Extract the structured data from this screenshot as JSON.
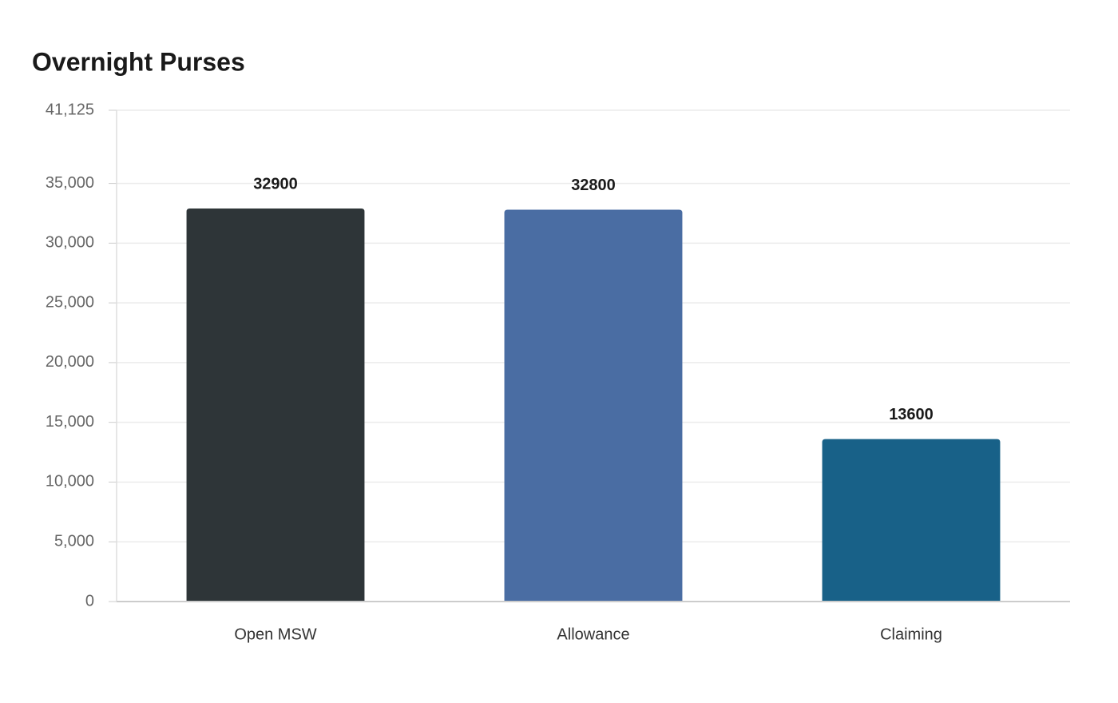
{
  "chart_data": {
    "type": "bar",
    "title": "Overnight Purses",
    "categories": [
      "Open MSW",
      "Allowance",
      "Claiming"
    ],
    "values": [
      32900,
      32800,
      13600
    ],
    "colors": [
      "#2e3538",
      "#4a6da3",
      "#186188"
    ],
    "ylim": [
      0,
      41125
    ],
    "yticks": [
      0,
      {
        "value": 5000,
        "label": "5,000"
      },
      {
        "value": 10000,
        "label": "10,000"
      },
      {
        "value": 15000,
        "label": "15,000"
      },
      {
        "value": 20000,
        "label": "20,000"
      },
      {
        "value": 25000,
        "label": "25,000"
      },
      {
        "value": 30000,
        "label": "30,000"
      },
      {
        "value": 35000,
        "label": "35,000"
      },
      {
        "value": 41125,
        "label": "41,125"
      }
    ],
    "grid": true
  }
}
